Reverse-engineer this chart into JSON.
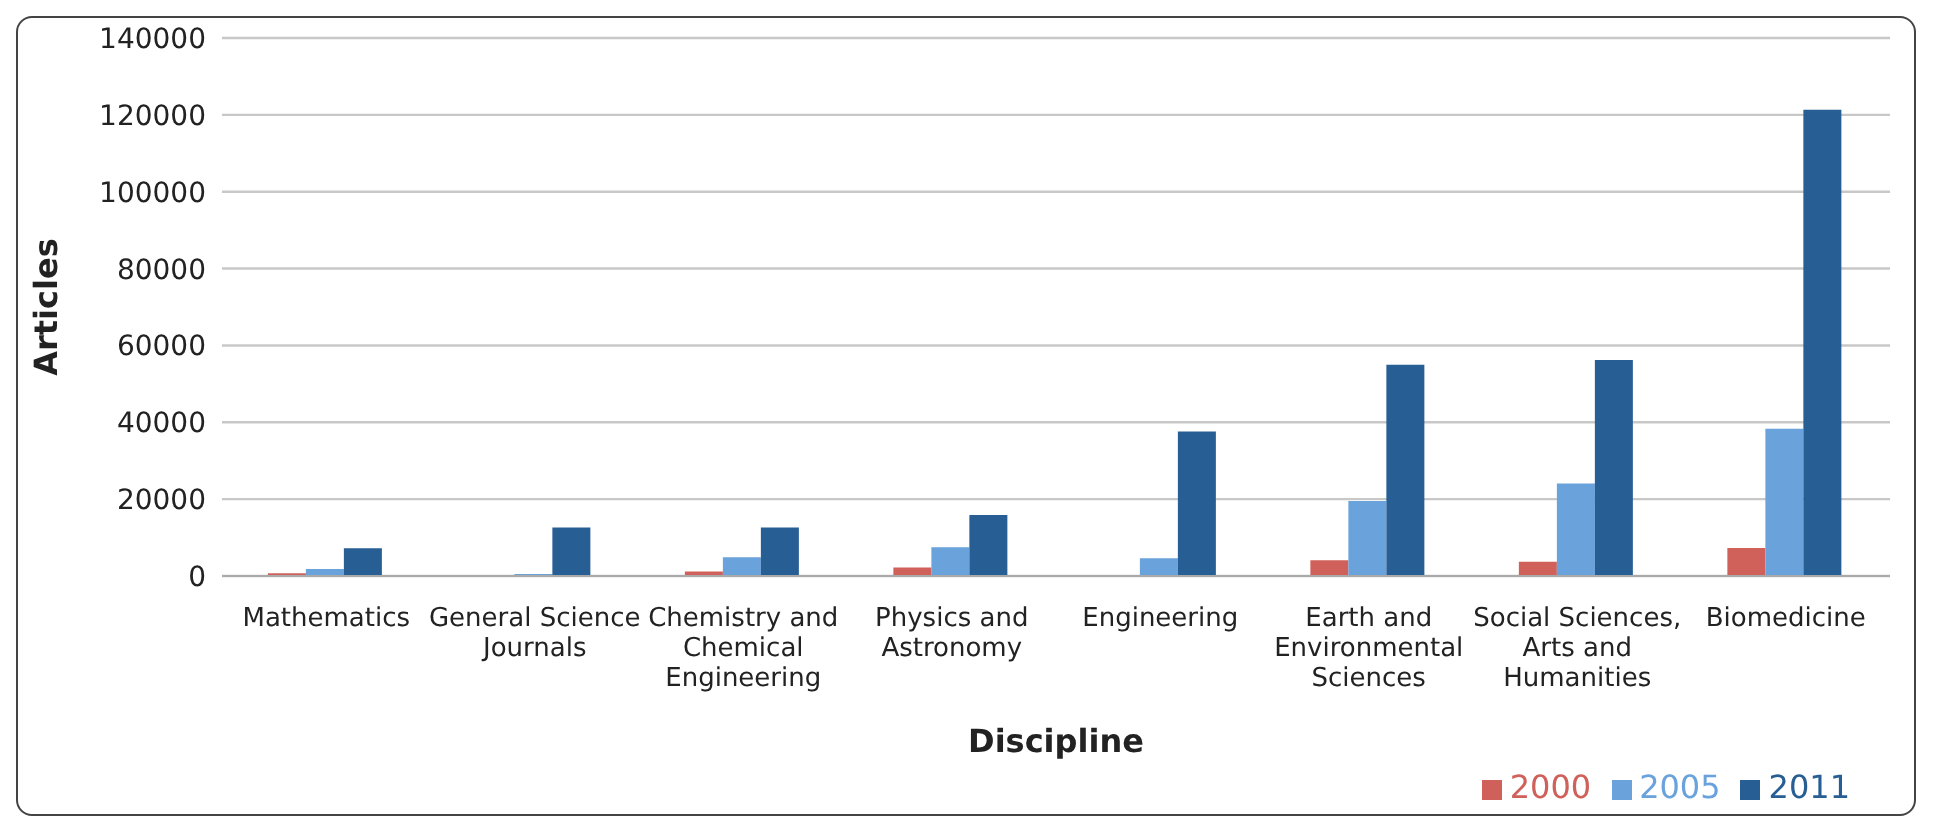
{
  "chart_data": {
    "type": "bar",
    "xlabel": "Discipline",
    "ylabel": "Articles",
    "categories": [
      "Mathematics",
      "General Science Journals",
      "Chemistry and Chemical Engineering",
      "Physics and Astronomy",
      "Engineering",
      "Earth and Environmental Sciences",
      "Social Sciences, Arts and Humanities",
      "Biomedicine"
    ],
    "series": [
      {
        "name": "2000",
        "color": "#d0605a",
        "values": [
          700,
          200,
          1200,
          2200,
          0,
          4100,
          3700,
          7300
        ]
      },
      {
        "name": "2005",
        "color": "#6aa2dc",
        "values": [
          1800,
          500,
          4900,
          7500,
          4600,
          19500,
          24100,
          38300
        ]
      },
      {
        "name": "2011",
        "color": "#275e93",
        "values": [
          7200,
          12600,
          12600,
          15900,
          37600,
          55000,
          56200,
          121300
        ]
      }
    ],
    "ylim": [
      0,
      140000
    ],
    "yticks": [
      0,
      20000,
      40000,
      60000,
      80000,
      100000,
      120000,
      140000
    ],
    "grid": "y",
    "legend": "bottom right"
  }
}
